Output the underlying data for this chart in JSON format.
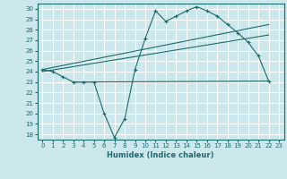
{
  "xlabel": "Humidex (Indice chaleur)",
  "bg_color": "#cce8ec",
  "grid_color": "#ffffff",
  "line_color": "#1a6b6b",
  "xlim": [
    -0.5,
    23.5
  ],
  "ylim": [
    17.5,
    30.5
  ],
  "xticks": [
    0,
    1,
    2,
    3,
    4,
    5,
    6,
    7,
    8,
    9,
    10,
    11,
    12,
    13,
    14,
    15,
    16,
    17,
    18,
    19,
    20,
    21,
    22,
    23
  ],
  "yticks": [
    18,
    19,
    20,
    21,
    22,
    23,
    24,
    25,
    26,
    27,
    28,
    29,
    30
  ],
  "zigzag_x": [
    0,
    1,
    2,
    3,
    4,
    5,
    6,
    7,
    8,
    9,
    10,
    11,
    12,
    13,
    14,
    15,
    16,
    17,
    18,
    19,
    20,
    21,
    22
  ],
  "zigzag_y": [
    24.2,
    24.0,
    23.5,
    23.0,
    23.0,
    23.0,
    20.0,
    17.7,
    19.5,
    24.2,
    27.2,
    29.8,
    28.8,
    29.3,
    29.8,
    30.2,
    29.8,
    29.3,
    28.5,
    27.7,
    26.8,
    25.5,
    23.1
  ],
  "trend1_x": [
    0,
    22
  ],
  "trend1_y": [
    24.2,
    28.5
  ],
  "trend2_x": [
    0,
    22
  ],
  "trend2_y": [
    24.0,
    27.5
  ],
  "hline_x": [
    3,
    22
  ],
  "hline_y": [
    23.0,
    23.1
  ],
  "xlabel_fontsize": 6,
  "tick_fontsize": 5
}
